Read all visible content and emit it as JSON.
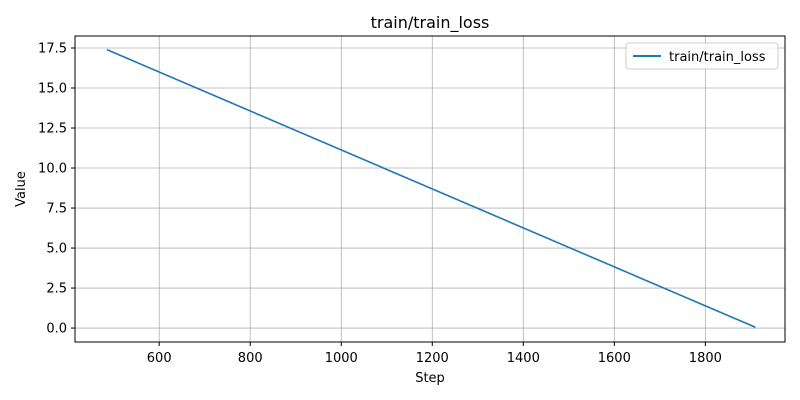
{
  "chart_data": {
    "type": "line",
    "title": "train/train_loss",
    "xlabel": "Step",
    "ylabel": "Value",
    "xlim": [
      415,
      1975
    ],
    "ylim": [
      -0.87,
      18.25
    ],
    "xticks": [
      600,
      800,
      1000,
      1200,
      1400,
      1600,
      1800
    ],
    "yticks": [
      0.0,
      2.5,
      5.0,
      7.5,
      10.0,
      12.5,
      15.0,
      17.5
    ],
    "ytick_labels": [
      "0.0",
      "2.5",
      "5.0",
      "7.5",
      "10.0",
      "12.5",
      "15.0",
      "17.5"
    ],
    "grid": true,
    "legend": "top-right",
    "series": [
      {
        "name": "train/train_loss",
        "color": "#1f77b4",
        "x": [
          485,
          1910
        ],
        "y": [
          17.4,
          0.05
        ]
      }
    ]
  }
}
